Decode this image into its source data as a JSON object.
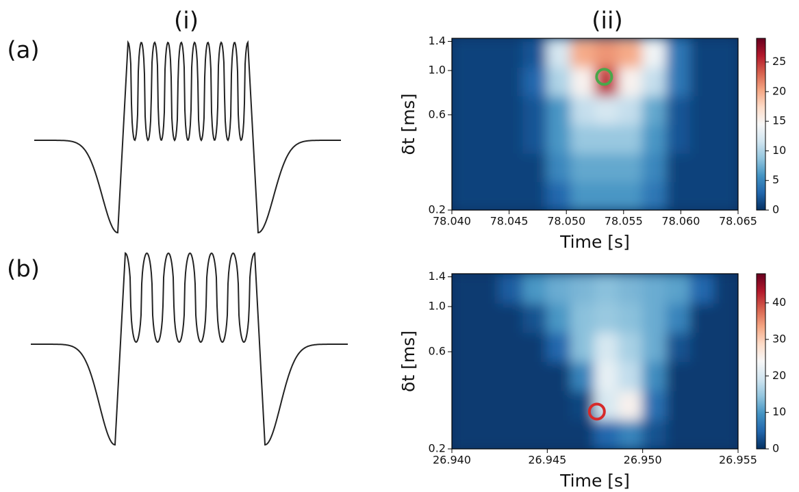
{
  "column_labels": [
    "(i)",
    "(ii)"
  ],
  "row_labels": [
    "(a)",
    "(b)"
  ],
  "chart_data": [
    {
      "type": "heatmap",
      "xlabel": "Time [s]",
      "ylabel": "δt [ms]",
      "xlim": [
        78.04,
        78.065
      ],
      "xticks": [
        {
          "value": 78.04,
          "label": "78.040"
        },
        {
          "value": 78.045,
          "label": "78.045"
        },
        {
          "value": 78.05,
          "label": "78.050"
        },
        {
          "value": 78.055,
          "label": "78.055"
        },
        {
          "value": 78.06,
          "label": "78.060"
        },
        {
          "value": 78.065,
          "label": "78.065"
        }
      ],
      "ylim": [
        0.2,
        1.45
      ],
      "yscale": "log",
      "yticks": [
        0.2,
        0.6,
        {
          "value": 1,
          "label": "1.0"
        },
        1.4
      ],
      "z": [
        [
          1,
          1,
          1,
          1,
          3,
          6,
          6,
          6,
          4,
          1,
          1,
          1
        ],
        [
          1,
          1,
          1,
          1,
          5,
          7,
          7,
          7,
          5,
          1,
          1,
          1
        ],
        [
          1,
          1,
          1,
          2,
          6,
          9,
          9,
          9,
          6,
          2,
          1,
          1
        ],
        [
          1,
          1,
          1,
          2,
          6,
          11,
          12,
          11,
          7,
          2,
          1,
          1
        ],
        [
          1,
          1,
          1,
          3,
          10,
          15,
          25,
          15,
          11,
          4,
          1,
          1
        ],
        [
          1,
          1,
          1,
          2,
          12,
          20,
          21,
          20,
          14,
          4,
          1,
          1
        ]
      ],
      "colormap": [
        "#053061",
        "#2166ac",
        "#4393c3",
        "#92c5de",
        "#d1e5f0",
        "#f7f7f7",
        "#fddbc7",
        "#f4a582",
        "#d6604d",
        "#b2182b",
        "#67001f"
      ],
      "clim": [
        0,
        29
      ],
      "cticks": [
        0,
        5,
        10,
        15,
        20,
        25
      ],
      "marker": {
        "x": 78.0533,
        "y": 0.93,
        "color": "#4aa64a"
      }
    },
    {
      "type": "heatmap",
      "xlabel": "Time [s]",
      "ylabel": "δt [ms]",
      "xlim": [
        26.94,
        26.955
      ],
      "xticks": [
        {
          "value": 26.94,
          "label": "26.940"
        },
        {
          "value": 26.945,
          "label": "26.945"
        },
        {
          "value": 26.95,
          "label": "26.950"
        },
        {
          "value": 26.955,
          "label": "26.955"
        }
      ],
      "ylim": [
        0.2,
        1.45
      ],
      "yscale": "log",
      "yticks": [
        0.2,
        0.6,
        {
          "value": 1,
          "label": "1.0"
        },
        1.4
      ],
      "z": [
        [
          1,
          1,
          1,
          1,
          1,
          1,
          5,
          8,
          3,
          1,
          1,
          1
        ],
        [
          1,
          1,
          1,
          1,
          1,
          2,
          20,
          25,
          6,
          1,
          1,
          1
        ],
        [
          1,
          1,
          1,
          1,
          1,
          8,
          22,
          18,
          9,
          1,
          1,
          1
        ],
        [
          1,
          1,
          1,
          1,
          5,
          14,
          20,
          16,
          12,
          3,
          1,
          1
        ],
        [
          1,
          1,
          1,
          3,
          10,
          14,
          15,
          14,
          12,
          8,
          1,
          1
        ],
        [
          1,
          1,
          4,
          10,
          12,
          13,
          14,
          13,
          12,
          11,
          5,
          1
        ]
      ],
      "colormap": [
        "#053061",
        "#2166ac",
        "#4393c3",
        "#92c5de",
        "#d1e5f0",
        "#f7f7f7",
        "#fddbc7",
        "#f4a582",
        "#d6604d",
        "#b2182b",
        "#67001f"
      ],
      "clim": [
        0,
        48
      ],
      "cticks": [
        0,
        10,
        20,
        30,
        40
      ],
      "marker": {
        "x": 26.9476,
        "y": 0.305,
        "color": "#d62a2a"
      }
    }
  ]
}
